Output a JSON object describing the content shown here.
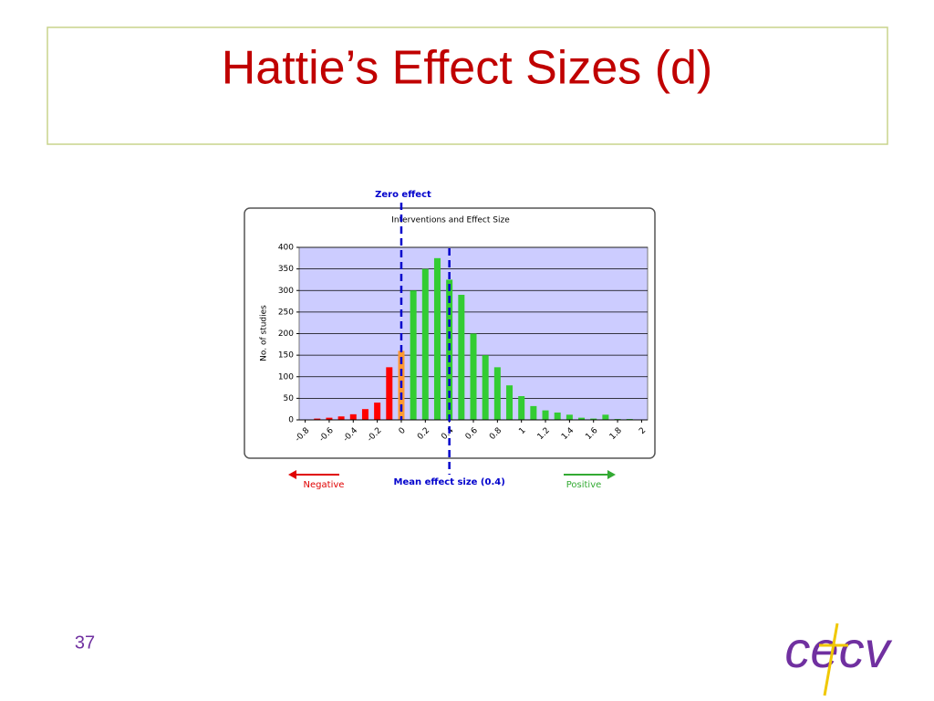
{
  "slide": {
    "title": "Hattie’s Effect Sizes (d)",
    "page_number": "37",
    "logo": "cecv"
  },
  "chart_data": {
    "type": "bar",
    "title": "Interventions and Effect Size",
    "y_label": "No. of studies",
    "x": [
      -0.8,
      -0.7,
      -0.6,
      -0.5,
      -0.4,
      -0.3,
      -0.2,
      -0.1,
      0,
      0.1,
      0.2,
      0.3,
      0.4,
      0.5,
      0.6,
      0.7,
      0.8,
      0.9,
      1,
      1.1,
      1.2,
      1.3,
      1.4,
      1.5,
      1.6,
      1.7,
      1.8,
      1.9,
      2
    ],
    "values": [
      1,
      3,
      5,
      8,
      13,
      25,
      40,
      122,
      160,
      300,
      350,
      375,
      325,
      290,
      200,
      150,
      122,
      80,
      55,
      32,
      22,
      17,
      12,
      5,
      3,
      12,
      2,
      2,
      1
    ],
    "colors": [
      "#ff0000",
      "#ff0000",
      "#ff0000",
      "#ff0000",
      "#ff0000",
      "#ff0000",
      "#ff0000",
      "#ff0000",
      "#ff9933",
      "#33cc33",
      "#33cc33",
      "#33cc33",
      "#33cc33",
      "#33cc33",
      "#33cc33",
      "#33cc33",
      "#33cc33",
      "#33cc33",
      "#33cc33",
      "#33cc33",
      "#33cc33",
      "#33cc33",
      "#33cc33",
      "#33cc33",
      "#33cc33",
      "#33cc33",
      "#33cc33",
      "#33cc33",
      "#33cc33"
    ],
    "xlim": [
      -0.85,
      2.05
    ],
    "xticks": [
      -0.8,
      -0.6,
      -0.4,
      -0.2,
      0,
      0.2,
      0.4,
      0.6,
      0.8,
      1,
      1.2,
      1.4,
      1.6,
      1.8,
      2
    ],
    "ylim": [
      0,
      400
    ],
    "yticks": [
      0,
      50,
      100,
      150,
      200,
      250,
      300,
      350,
      400
    ],
    "grid": true,
    "plot_background": "#ccccff",
    "annotations": [
      {
        "text": "Zero effect",
        "x": 0
      },
      {
        "text": "Mean effect size (0.4)",
        "x": 0.4
      }
    ],
    "direction_labels": [
      {
        "text": "Negative",
        "color": "#e00000"
      },
      {
        "text": "Positive",
        "color": "#33aa33"
      }
    ]
  }
}
